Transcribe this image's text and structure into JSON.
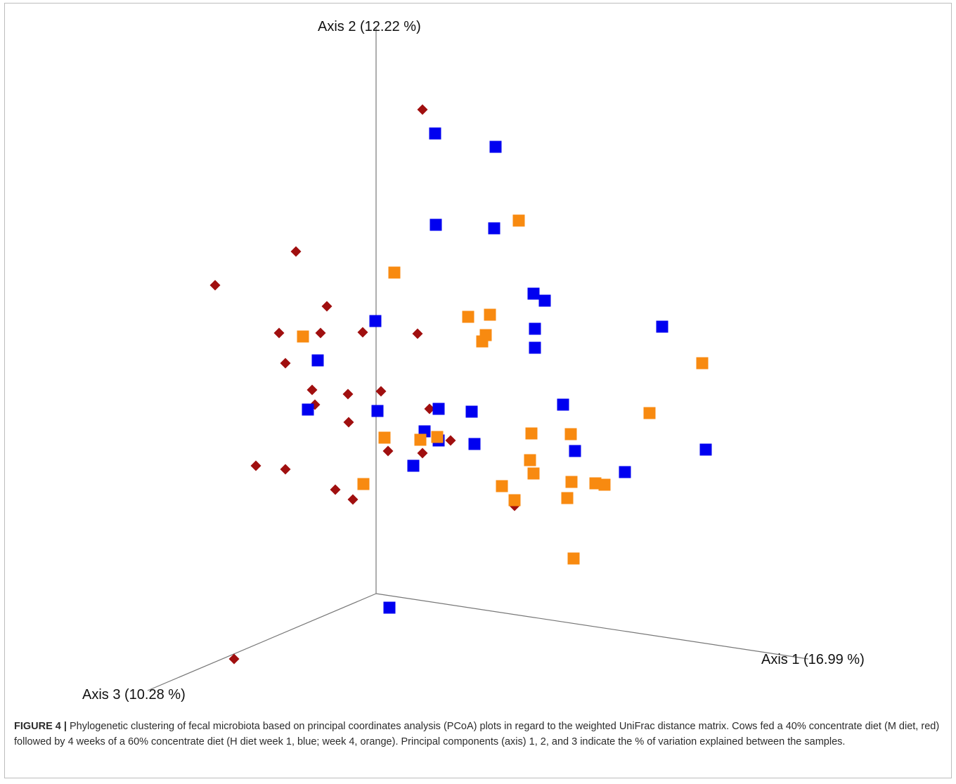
{
  "figure": {
    "label": "FIGURE 4 |",
    "caption": "Phylogenetic clustering of fecal microbiota based on principal coordinates analysis (PCoA) plots in regard to the weighted UniFrac distance matrix. Cows fed a 40% concentrate diet (M diet, red) followed by 4 weeks of a 60% concentrate diet (H diet week 1, blue; week 4, orange). Principal components (axis) 1, 2, and 3 indicate the % of variation explained between the samples."
  },
  "colors": {
    "red": "#a00f0f",
    "blue": "#0000f0",
    "orange": "#f88a10",
    "axis": "#777777"
  },
  "chart_data": {
    "type": "scatter",
    "projection": "3d",
    "axes": {
      "x": {
        "label": "Axis 1 (16.99 %)"
      },
      "y": {
        "label": "Axis 2 (12.22 %)"
      },
      "z": {
        "label": "Axis 3 (10.28 %)"
      }
    },
    "grid": false,
    "legend": "none",
    "series": [
      {
        "color": "red",
        "marker": "diamond",
        "points": [
          [
            601,
            156
          ],
          [
            421,
            358
          ],
          [
            306,
            406
          ],
          [
            465,
            436
          ],
          [
            397,
            474
          ],
          [
            456,
            474
          ],
          [
            516,
            473
          ],
          [
            594,
            475
          ],
          [
            406,
            517
          ],
          [
            444,
            555
          ],
          [
            448,
            576
          ],
          [
            495,
            561
          ],
          [
            542,
            557
          ],
          [
            611,
            582
          ],
          [
            496,
            601
          ],
          [
            641,
            627
          ],
          [
            552,
            642
          ],
          [
            601,
            645
          ],
          [
            364,
            663
          ],
          [
            406,
            668
          ],
          [
            477,
            697
          ],
          [
            502,
            711
          ],
          [
            732,
            720
          ],
          [
            333,
            938
          ]
        ]
      },
      {
        "color": "blue",
        "marker": "square",
        "points": [
          [
            619,
            190
          ],
          [
            705,
            209
          ],
          [
            620,
            320
          ],
          [
            703,
            325
          ],
          [
            759,
            418
          ],
          [
            775,
            428
          ],
          [
            534,
            457
          ],
          [
            761,
            468
          ],
          [
            942,
            465
          ],
          [
            761,
            495
          ],
          [
            452,
            513
          ],
          [
            438,
            583
          ],
          [
            537,
            585
          ],
          [
            624,
            582
          ],
          [
            671,
            586
          ],
          [
            801,
            576
          ],
          [
            604,
            614
          ],
          [
            624,
            627
          ],
          [
            675,
            632
          ],
          [
            818,
            642
          ],
          [
            1004,
            640
          ],
          [
            588,
            663
          ],
          [
            889,
            672
          ],
          [
            554,
            865
          ]
        ]
      },
      {
        "color": "orange",
        "marker": "square",
        "points": [
          [
            738,
            314
          ],
          [
            561,
            388
          ],
          [
            666,
            451
          ],
          [
            697,
            448
          ],
          [
            691,
            477
          ],
          [
            686,
            486
          ],
          [
            431,
            479
          ],
          [
            999,
            517
          ],
          [
            924,
            588
          ],
          [
            756,
            617
          ],
          [
            812,
            618
          ],
          [
            547,
            623
          ],
          [
            598,
            626
          ],
          [
            622,
            622
          ],
          [
            754,
            655
          ],
          [
            759,
            674
          ],
          [
            517,
            689
          ],
          [
            714,
            692
          ],
          [
            813,
            686
          ],
          [
            847,
            688
          ],
          [
            860,
            690
          ],
          [
            732,
            712
          ],
          [
            807,
            709
          ],
          [
            816,
            795
          ]
        ]
      }
    ]
  }
}
